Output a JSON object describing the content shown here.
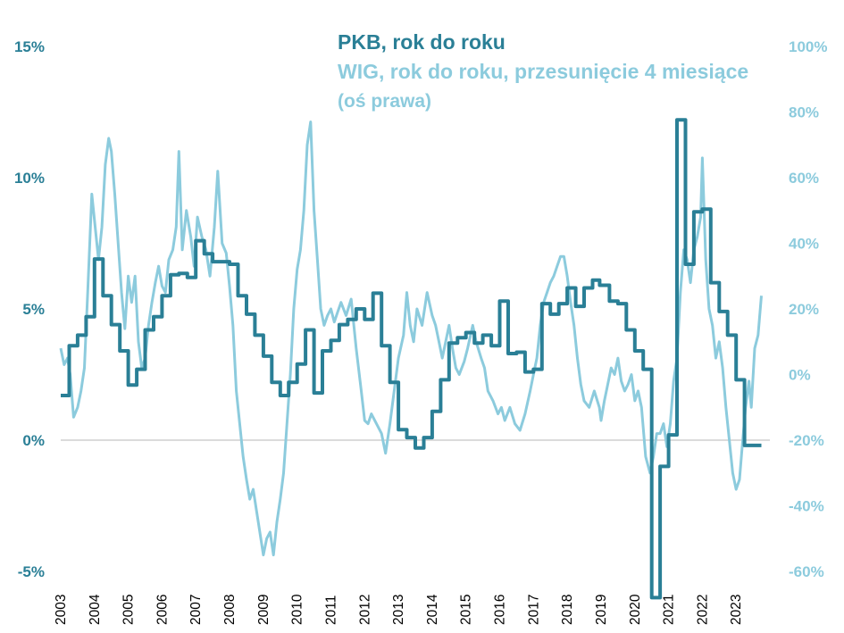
{
  "chart_data": {
    "type": "line",
    "title": "",
    "legend_placement": "top-center",
    "xlabel": "",
    "x_ticks": [
      "2003",
      "2004",
      "2005",
      "2006",
      "2007",
      "2008",
      "2009",
      "2010",
      "2011",
      "2012",
      "2013",
      "2014",
      "2015",
      "2016",
      "2017",
      "2018",
      "2019",
      "2020",
      "2021",
      "2022",
      "2023"
    ],
    "x_range": [
      2003.0,
      2024.0
    ],
    "y_left": {
      "ticks": [
        "15%",
        "10%",
        "5%",
        "0%",
        "-5%"
      ],
      "ylim": [
        -5,
        15
      ],
      "zero_line": 0
    },
    "y_right": {
      "ticks": [
        "100%",
        "80%",
        "60%",
        "40%",
        "20%",
        "0%",
        "-20%",
        "-40%",
        "-60%"
      ],
      "ylim": [
        -60,
        100
      ]
    },
    "series": [
      {
        "name": "PKB, rok do roku",
        "axis": "left",
        "style": "step",
        "color": "#2a7f96",
        "points": [
          [
            2003.0,
            1.7
          ],
          [
            2003.25,
            3.6
          ],
          [
            2003.5,
            4.0
          ],
          [
            2003.75,
            4.7
          ],
          [
            2004.0,
            6.9
          ],
          [
            2004.25,
            5.5
          ],
          [
            2004.5,
            4.4
          ],
          [
            2004.75,
            3.4
          ],
          [
            2005.0,
            2.1
          ],
          [
            2005.25,
            2.7
          ],
          [
            2005.5,
            4.2
          ],
          [
            2005.75,
            4.7
          ],
          [
            2006.0,
            5.5
          ],
          [
            2006.25,
            6.3
          ],
          [
            2006.5,
            6.35
          ],
          [
            2006.75,
            6.2
          ],
          [
            2007.0,
            7.6
          ],
          [
            2007.25,
            7.1
          ],
          [
            2007.5,
            6.8
          ],
          [
            2007.75,
            6.8
          ],
          [
            2008.0,
            6.7
          ],
          [
            2008.25,
            5.5
          ],
          [
            2008.5,
            4.8
          ],
          [
            2008.75,
            4.0
          ],
          [
            2009.0,
            3.2
          ],
          [
            2009.25,
            2.2
          ],
          [
            2009.5,
            1.7
          ],
          [
            2009.75,
            2.2
          ],
          [
            2010.0,
            2.9
          ],
          [
            2010.25,
            4.2
          ],
          [
            2010.5,
            1.8
          ],
          [
            2010.75,
            3.4
          ],
          [
            2011.0,
            3.8
          ],
          [
            2011.25,
            4.4
          ],
          [
            2011.5,
            4.6
          ],
          [
            2011.75,
            5.0
          ],
          [
            2012.0,
            4.6
          ],
          [
            2012.25,
            5.6
          ],
          [
            2012.5,
            3.6
          ],
          [
            2012.75,
            2.2
          ],
          [
            2013.0,
            0.4
          ],
          [
            2013.25,
            0.1
          ],
          [
            2013.5,
            -0.3
          ],
          [
            2013.75,
            0.1
          ],
          [
            2014.0,
            1.1
          ],
          [
            2014.25,
            2.3
          ],
          [
            2014.5,
            3.7
          ],
          [
            2014.75,
            3.9
          ],
          [
            2015.0,
            4.1
          ],
          [
            2015.25,
            3.7
          ],
          [
            2015.5,
            4.0
          ],
          [
            2015.75,
            3.6
          ],
          [
            2016.0,
            5.3
          ],
          [
            2016.25,
            3.3
          ],
          [
            2016.5,
            3.35
          ],
          [
            2016.75,
            2.6
          ],
          [
            2017.0,
            2.7
          ],
          [
            2017.25,
            5.2
          ],
          [
            2017.5,
            4.8
          ],
          [
            2017.75,
            5.2
          ],
          [
            2018.0,
            5.8
          ],
          [
            2018.25,
            5.1
          ],
          [
            2018.5,
            5.8
          ],
          [
            2018.75,
            6.1
          ],
          [
            2018.96,
            5.9
          ],
          [
            2019.25,
            5.3
          ],
          [
            2019.5,
            5.2
          ],
          [
            2019.75,
            4.2
          ],
          [
            2020.0,
            3.4
          ],
          [
            2020.25,
            2.7
          ],
          [
            2020.5,
            -6.0
          ],
          [
            2020.75,
            -1.0
          ],
          [
            2021.0,
            0.2
          ],
          [
            2021.25,
            12.2
          ],
          [
            2021.5,
            6.7
          ],
          [
            2021.75,
            8.7
          ],
          [
            2022.0,
            8.8
          ],
          [
            2022.25,
            6.0
          ],
          [
            2022.5,
            4.9
          ],
          [
            2022.75,
            4.0
          ],
          [
            2023.0,
            2.3
          ],
          [
            2023.25,
            -0.2
          ],
          [
            2023.5,
            -0.2
          ]
        ]
      },
      {
        "name": "WIG, rok do roku, przesunięcie 4 miesiące",
        "axis": "right",
        "style": "line",
        "color": "#8ccbdd",
        "points": [
          [
            2003.0,
            8
          ],
          [
            2003.1,
            3
          ],
          [
            2003.2,
            5
          ],
          [
            2003.28,
            0
          ],
          [
            2003.38,
            -13
          ],
          [
            2003.5,
            -10
          ],
          [
            2003.6,
            -5
          ],
          [
            2003.7,
            2
          ],
          [
            2003.8,
            25
          ],
          [
            2003.92,
            55
          ],
          [
            2004.0,
            47
          ],
          [
            2004.12,
            35
          ],
          [
            2004.22,
            45
          ],
          [
            2004.32,
            64
          ],
          [
            2004.42,
            72
          ],
          [
            2004.5,
            68
          ],
          [
            2004.6,
            55
          ],
          [
            2004.7,
            40
          ],
          [
            2004.8,
            25
          ],
          [
            2004.9,
            14
          ],
          [
            2005.0,
            30
          ],
          [
            2005.1,
            22
          ],
          [
            2005.2,
            30
          ],
          [
            2005.3,
            10
          ],
          [
            2005.4,
            2
          ],
          [
            2005.5,
            5
          ],
          [
            2005.6,
            15
          ],
          [
            2005.7,
            22
          ],
          [
            2005.8,
            28
          ],
          [
            2005.9,
            33
          ],
          [
            2006.0,
            27
          ],
          [
            2006.1,
            25
          ],
          [
            2006.2,
            35
          ],
          [
            2006.32,
            38
          ],
          [
            2006.42,
            45
          ],
          [
            2006.5,
            68
          ],
          [
            2006.6,
            38
          ],
          [
            2006.72,
            50
          ],
          [
            2006.85,
            42
          ],
          [
            2006.95,
            33
          ],
          [
            2007.05,
            48
          ],
          [
            2007.18,
            42
          ],
          [
            2007.3,
            38
          ],
          [
            2007.42,
            30
          ],
          [
            2007.55,
            45
          ],
          [
            2007.65,
            62
          ],
          [
            2007.78,
            40
          ],
          [
            2007.9,
            37
          ],
          [
            2008.0,
            27
          ],
          [
            2008.1,
            15
          ],
          [
            2008.2,
            -5
          ],
          [
            2008.3,
            -15
          ],
          [
            2008.4,
            -25
          ],
          [
            2008.5,
            -32
          ],
          [
            2008.6,
            -38
          ],
          [
            2008.7,
            -35
          ],
          [
            2009.0,
            -55
          ],
          [
            2009.1,
            -50
          ],
          [
            2009.2,
            -48
          ],
          [
            2009.3,
            -55
          ],
          [
            2009.4,
            -45
          ],
          [
            2009.5,
            -38
          ],
          [
            2009.6,
            -30
          ],
          [
            2009.7,
            -15
          ],
          [
            2009.8,
            0
          ],
          [
            2009.9,
            20
          ],
          [
            2010.0,
            32
          ],
          [
            2010.1,
            38
          ],
          [
            2010.2,
            50
          ],
          [
            2010.3,
            70
          ],
          [
            2010.4,
            77
          ],
          [
            2010.5,
            50
          ],
          [
            2010.6,
            35
          ],
          [
            2010.7,
            20
          ],
          [
            2010.8,
            15
          ],
          [
            2010.9,
            18
          ],
          [
            2011.0,
            20
          ],
          [
            2011.1,
            16
          ],
          [
            2011.2,
            19
          ],
          [
            2011.3,
            22
          ],
          [
            2011.45,
            18
          ],
          [
            2011.6,
            23
          ],
          [
            2011.75,
            8
          ],
          [
            2011.9,
            -5
          ],
          [
            2012.0,
            -14
          ],
          [
            2012.1,
            -15
          ],
          [
            2012.2,
            -12
          ],
          [
            2012.35,
            -15
          ],
          [
            2012.5,
            -18
          ],
          [
            2012.62,
            -24
          ],
          [
            2012.75,
            -15
          ],
          [
            2013.0,
            5
          ],
          [
            2013.15,
            12
          ],
          [
            2013.25,
            25
          ],
          [
            2013.35,
            15
          ],
          [
            2013.45,
            10
          ],
          [
            2013.55,
            20
          ],
          [
            2013.7,
            15
          ],
          [
            2013.85,
            25
          ],
          [
            2014.0,
            18
          ],
          [
            2014.1,
            15
          ],
          [
            2014.2,
            10
          ],
          [
            2014.3,
            5
          ],
          [
            2014.4,
            10
          ],
          [
            2014.5,
            15
          ],
          [
            2014.6,
            8
          ],
          [
            2014.7,
            2
          ],
          [
            2014.8,
            0
          ],
          [
            2014.95,
            4
          ],
          [
            2015.05,
            8
          ],
          [
            2015.2,
            15
          ],
          [
            2015.3,
            10
          ],
          [
            2015.45,
            5
          ],
          [
            2015.55,
            2
          ],
          [
            2015.65,
            -5
          ],
          [
            2015.8,
            -8
          ],
          [
            2015.95,
            -12
          ],
          [
            2016.05,
            -10
          ],
          [
            2016.15,
            -14
          ],
          [
            2016.3,
            -10
          ],
          [
            2016.45,
            -15
          ],
          [
            2016.6,
            -17
          ],
          [
            2016.75,
            -12
          ],
          [
            2016.9,
            -5
          ],
          [
            2017.0,
            0
          ],
          [
            2017.1,
            5
          ],
          [
            2017.2,
            15
          ],
          [
            2017.3,
            22
          ],
          [
            2017.4,
            25
          ],
          [
            2017.5,
            28
          ],
          [
            2017.6,
            30
          ],
          [
            2017.7,
            33
          ],
          [
            2017.8,
            36
          ],
          [
            2017.9,
            36
          ],
          [
            2018.0,
            30
          ],
          [
            2018.1,
            22
          ],
          [
            2018.2,
            15
          ],
          [
            2018.3,
            5
          ],
          [
            2018.4,
            -3
          ],
          [
            2018.5,
            -8
          ],
          [
            2018.65,
            -10
          ],
          [
            2018.8,
            -5
          ],
          [
            2018.95,
            -10
          ],
          [
            2019.0,
            -14
          ],
          [
            2019.1,
            -8
          ],
          [
            2019.2,
            -3
          ],
          [
            2019.3,
            2
          ],
          [
            2019.4,
            0
          ],
          [
            2019.5,
            5
          ],
          [
            2019.6,
            -2
          ],
          [
            2019.7,
            -5
          ],
          [
            2019.8,
            -3
          ],
          [
            2019.9,
            0
          ],
          [
            2020.0,
            -8
          ],
          [
            2020.1,
            -5
          ],
          [
            2020.2,
            -10
          ],
          [
            2020.32,
            -25
          ],
          [
            2020.45,
            -30
          ],
          [
            2020.55,
            -25
          ],
          [
            2020.65,
            -18
          ],
          [
            2020.75,
            -18
          ],
          [
            2020.85,
            -15
          ],
          [
            2020.95,
            -22
          ],
          [
            2021.05,
            -15
          ],
          [
            2021.15,
            -2
          ],
          [
            2021.25,
            5
          ],
          [
            2021.35,
            25
          ],
          [
            2021.45,
            38
          ],
          [
            2021.55,
            35
          ],
          [
            2021.65,
            28
          ],
          [
            2021.75,
            38
          ],
          [
            2021.85,
            42
          ],
          [
            2021.95,
            48
          ],
          [
            2022.0,
            66
          ],
          [
            2022.1,
            35
          ],
          [
            2022.2,
            20
          ],
          [
            2022.3,
            15
          ],
          [
            2022.4,
            5
          ],
          [
            2022.5,
            10
          ],
          [
            2022.6,
            2
          ],
          [
            2022.7,
            -10
          ],
          [
            2022.8,
            -20
          ],
          [
            2022.9,
            -30
          ],
          [
            2023.0,
            -35
          ],
          [
            2023.1,
            -32
          ],
          [
            2023.18,
            -22
          ],
          [
            2023.28,
            -10
          ],
          [
            2023.38,
            -2
          ],
          [
            2023.45,
            -10
          ],
          [
            2023.55,
            8
          ],
          [
            2023.65,
            12
          ],
          [
            2023.75,
            24
          ]
        ]
      }
    ]
  },
  "legend": {
    "gdp_label": "PKB, rok do roku",
    "wig_label": "WIG, rok do roku, przesunięcie 4 miesiące",
    "wig_note": "(oś prawa)"
  }
}
